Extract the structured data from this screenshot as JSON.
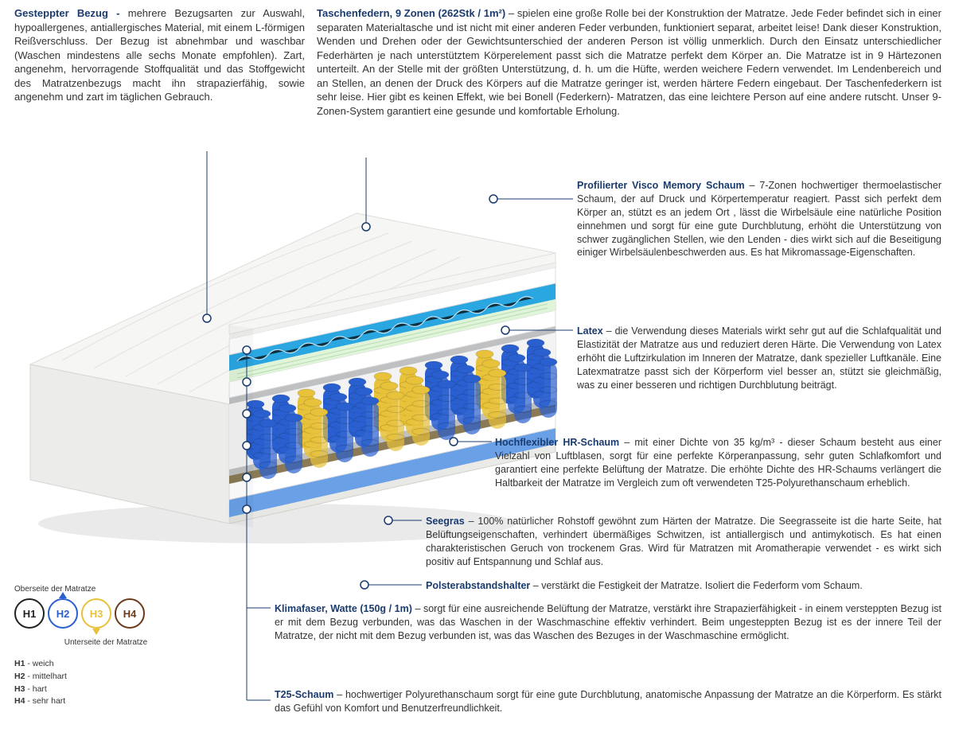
{
  "top_left": {
    "title": "Gesteppter Bezug - ",
    "text": "mehrere Bezugsarten zur Auswahl, hypoallergenes, antiallergisches Material, mit einem L-förmigen Reißverschluss. Der Bezug ist abnehmbar und waschbar (Waschen mindestens alle sechs Monate empfohlen). Zart, angenehm, hervorragende Stoffqualität und das Stoffgewicht des Matratzenbezugs macht ihn strapazierfähig, sowie angenehm und zart im täglichen Gebrauch."
  },
  "top_right": {
    "title": "Taschenfedern, 9 Zonen (262Stk / 1m²) ",
    "text": "– spielen eine große Rolle bei der Konstruktion der Matratze. Jede Feder befindet sich in einer separaten Materialtasche und ist nicht mit einer anderen Feder verbunden, funktioniert separat, arbeitet leise! Dank dieser Konstruktion, Wenden und Drehen oder der Gewichtsunterschied der anderen Person ist völlig unmerklich. Durch den Einsatz unterschiedlicher Federhärten je nach unterstütztem Körperelement passt sich die Matratze perfekt dem Körper an. Die Matratze ist in 9 Härtezonen unterteilt. An der Stelle mit der größten Unterstützung, d. h. um die Hüfte, werden weichere Federn verwendet. Im Lendenbereich und an Stellen, an denen der Druck des Körpers auf die Matratze geringer ist, werden härtere Federn eingebaut. Der Taschenfederkern ist sehr leise. Hier gibt es keinen Effekt, wie bei Bonell (Federkern)- Matratzen, das eine leichtere Person auf eine andere rutscht. Unser 9-Zonen-System garantiert eine gesunde und komfortable Erholung."
  },
  "r1": {
    "title": "Profilierter Visco Memory Schaum ",
    "text": "– 7-Zonen hochwertiger thermoelastischer Schaum, der auf Druck und Körpertemperatur reagiert. Passt sich perfekt dem Körper an, stützt es an jedem Ort , lässt die Wirbelsäule eine natürliche Position einnehmen und sorgt für eine gute Durchblutung, erhöht die Unterstützung von schwer zugänglichen Stellen, wie den Lenden - dies wirkt sich auf die Beseitigung einiger Wirbelsäulenbeschwerden aus. Es hat Mikromassage-Eigenschaften."
  },
  "r2": {
    "title": "Latex ",
    "text": "– die Verwendung dieses Materials wirkt sehr gut auf die Schlafqualität und Elastizität der Matratze aus und reduziert deren Härte. Die Verwendung von Latex erhöht die Luftzirkulation im Inneren der Matratze, dank spezieller Luftkanäle. Eine Latexmatratze passt sich der Körperform viel besser an, stützt sie gleichmäßig, was zu einer besseren und richtigen Durchblutung beiträgt."
  },
  "r3": {
    "title": "Hochflexibler HR-Schaum ",
    "text": "– mit einer Dichte von 35 kg/m³ - dieser Schaum besteht aus einer Vielzahl von Luftblasen, sorgt für eine perfekte Körperanpassung, sehr guten Schlafkomfort und garantiert eine perfekte Belüftung der Matratze. Die erhöhte Dichte des HR-Schaums verlängert die Haltbarkeit der Matratze im Vergleich zum oft verwendeten T25-Polyurethanschaum erheblich."
  },
  "r4": {
    "title": "Seegras ",
    "text": "– 100% natürlicher Rohstoff gewöhnt zum Härten der Matratze. Die Seegrasseite ist die harte Seite, hat Belüftungseigenschaften, verhindert übermäßiges Schwitzen, ist antiallergisch und antimykotisch. Es hat einen charakteristischen Geruch von trockenem Gras. Wird für Matratzen mit Aromatherapie verwendet - es wirkt sich positiv auf Entspannung und Schlaf aus."
  },
  "r5": {
    "title": "Polsterabstandshalter ",
    "text": "– verstärkt die Festigkeit der Matratze. Isoliert die Federform vom Schaum."
  },
  "b1": {
    "title": "Klimafaser, Watte (150g / 1m) ",
    "text": "– sorgt für eine ausreichende Belüftung der Matratze, verstärkt ihre Strapazierfähigkeit - in einem versteppten Bezug ist er mit dem Bezug verbunden, was das Waschen in der Waschmaschine effektiv verhindert. Beim ungesteppten Bezug ist es der innere Teil der Matratze, der nicht mit dem Bezug verbunden ist, was das Waschen des Bezuges in der Waschmaschine ermöglicht."
  },
  "b2": {
    "title": "T25-Schaum ",
    "text": "– hochwertiger Polyurethanschaum sorgt für eine gute Durchblutung, anatomische Anpassung der Matratze an die Körperform. Es stärkt das Gefühl von Komfort und Benutzerfreundlichkeit."
  },
  "legend": {
    "top_label": "Oberseite der Matratze",
    "bottom_label": "Unterseite der Matratze",
    "circles": [
      {
        "label": "H1",
        "color": "#222222",
        "arrow": "none"
      },
      {
        "label": "H2",
        "color": "#2a5fd0",
        "arrow": "up"
      },
      {
        "label": "H3",
        "color": "#e8c23a",
        "arrow": "down"
      },
      {
        "label": "H4",
        "color": "#6b3a1a",
        "arrow": "none"
      }
    ],
    "items": [
      {
        "k": "H1",
        "v": "- weich"
      },
      {
        "k": "H2",
        "v": "- mittelhart"
      },
      {
        "k": "H3",
        "v": "- hart"
      },
      {
        "k": "H4",
        "v": "- sehr hart"
      }
    ]
  },
  "mattress_colors": {
    "cover": "#f2f2f0",
    "cover_shadow": "#d8d8d4",
    "visco": "#2aa6e0",
    "latex": "#dff4d8",
    "hr_foam": "#ffffff",
    "spring_blue": "#2a5fd0",
    "spring_yellow": "#e8c23a",
    "seagrass": "#8a7a55",
    "t25": "#ffffff",
    "spacer": "#bfc0c2",
    "base_blue": "#6aa0e6"
  }
}
